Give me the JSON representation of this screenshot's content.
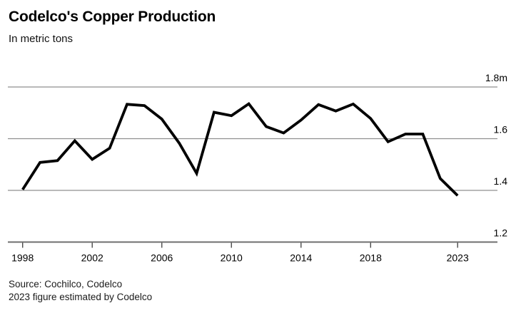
{
  "header": {
    "title": "Codelco's Copper Production",
    "subtitle": "In metric tons"
  },
  "footer": {
    "source_line": "Source: Cochilco, Codelco",
    "note_line": "2023 figure estimated by Codelco"
  },
  "chart_data": {
    "type": "line",
    "title": "Codelco's Copper Production",
    "subtitle": "In metric tons",
    "units": "millions of metric tons",
    "x": [
      1998,
      1999,
      2000,
      2001,
      2002,
      2003,
      2004,
      2005,
      2006,
      2007,
      2008,
      2009,
      2010,
      2011,
      2012,
      2013,
      2014,
      2015,
      2016,
      2017,
      2018,
      2019,
      2020,
      2021,
      2022,
      2023
    ],
    "values": [
      1.403,
      1.508,
      1.515,
      1.592,
      1.52,
      1.563,
      1.733,
      1.728,
      1.676,
      1.583,
      1.466,
      1.702,
      1.689,
      1.735,
      1.647,
      1.622,
      1.672,
      1.732,
      1.707,
      1.734,
      1.678,
      1.588,
      1.618,
      1.618,
      1.446,
      1.38
    ],
    "series_name": "Codelco copper production",
    "x_ticks": [
      1998,
      2002,
      2006,
      2010,
      2014,
      2018,
      2023
    ],
    "x_tick_labels": [
      "1998",
      "2002",
      "2006",
      "2010",
      "2014",
      "2018",
      "2023"
    ],
    "y_ticks": [
      1.2,
      1.4,
      1.6,
      1.8
    ],
    "y_tick_labels": [
      "1.2",
      "1.4",
      "1.6",
      "1.8m"
    ],
    "ylim": [
      1.2,
      1.8
    ],
    "grid": true,
    "legend_position": "none",
    "colors": {
      "line": "#000000",
      "grid": "#8f8f8f",
      "axis": "#6f6f6f",
      "tick": "#4a4a4a",
      "label": "#000000",
      "background": "#ffffff"
    }
  }
}
